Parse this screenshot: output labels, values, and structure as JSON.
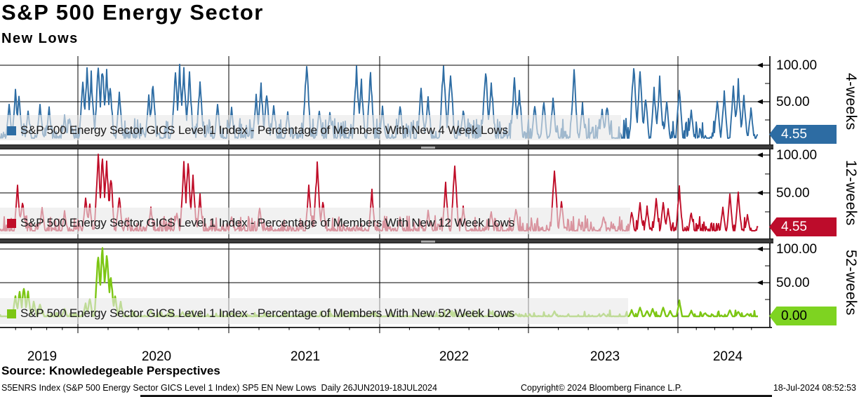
{
  "header": {
    "title": "S&P 500 Energy Sector",
    "subtitle": "New Lows"
  },
  "footer": {
    "source": "Source: Knowledegeable Perspectives",
    "descriptor": "S5ENRS Index (S&P 500 Energy Sector GICS Level 1 Index) SP5 EN New Lows  Daily 26JUN2019-18JUL2024",
    "copyright": "Copyright© 2024 Bloomberg Finance L.P.",
    "timestamp": "18-Jul-2024 08:52:53"
  },
  "chart_data": {
    "type": "line",
    "title": "S&P 500 Energy Sector - New Lows",
    "x_axis": {
      "years": [
        "2019",
        "2020",
        "2021",
        "2022",
        "2023",
        "2024"
      ],
      "range": "26JUN2019-18JUL2024",
      "grid": true
    },
    "y_axis": {
      "tick_labels": [
        "100.00",
        "50.00"
      ],
      "ylim": [
        0,
        100
      ],
      "minor_ticks": [
        25,
        75
      ]
    },
    "panels": [
      {
        "id": "4-weeks",
        "axis_label": "4-weeks",
        "legend": "S&P 500 Energy Sector GICS Level 1 Index - Percentage of Members With New 4 Week Lows",
        "color": "#2e6da4",
        "last_value": 4.55,
        "tag": {
          "label": "4.55",
          "bg": "#2d6ca3",
          "fg": "#ffffff"
        },
        "seed": 42,
        "noise": {
          "density": 0.9,
          "pow": 3.2,
          "scale": 27
        },
        "spikes": [
          [
            13,
            45
          ],
          [
            22,
            62
          ],
          [
            27,
            58
          ],
          [
            40,
            35
          ],
          [
            57,
            48
          ],
          [
            70,
            40
          ],
          [
            92,
            30
          ],
          [
            99,
            28
          ],
          [
            118,
            78
          ],
          [
            124,
            90
          ],
          [
            130,
            85
          ],
          [
            140,
            95
          ],
          [
            146,
            97
          ],
          [
            152,
            92
          ],
          [
            157,
            75
          ],
          [
            170,
            60
          ],
          [
            212,
            55
          ],
          [
            218,
            75
          ],
          [
            250,
            88
          ],
          [
            256,
            92
          ],
          [
            262,
            90
          ],
          [
            270,
            85
          ],
          [
            285,
            75
          ],
          [
            310,
            45
          ],
          [
            330,
            40
          ],
          [
            365,
            55
          ],
          [
            372,
            70
          ],
          [
            380,
            62
          ],
          [
            390,
            48
          ],
          [
            410,
            35
          ],
          [
            437,
            104
          ],
          [
            455,
            40
          ],
          [
            470,
            35
          ],
          [
            508,
            95
          ],
          [
            515,
            75
          ],
          [
            528,
            88
          ],
          [
            545,
            40
          ],
          [
            570,
            45
          ],
          [
            600,
            68
          ],
          [
            610,
            55
          ],
          [
            632,
            102
          ],
          [
            642,
            92
          ],
          [
            660,
            40
          ],
          [
            692,
            97
          ],
          [
            700,
            80
          ],
          [
            733,
            80
          ],
          [
            740,
            65
          ],
          [
            762,
            45
          ],
          [
            775,
            50
          ],
          [
            788,
            55
          ],
          [
            818,
            90
          ],
          [
            830,
            45
          ],
          [
            858,
            42
          ],
          [
            865,
            45
          ],
          [
            903,
            101
          ],
          [
            912,
            88
          ],
          [
            920,
            55
          ],
          [
            932,
            65
          ],
          [
            940,
            78
          ],
          [
            950,
            50
          ],
          [
            968,
            70
          ],
          [
            985,
            35
          ],
          [
            1022,
            55
          ],
          [
            1032,
            62
          ],
          [
            1045,
            70
          ],
          [
            1052,
            75
          ],
          [
            1060,
            55
          ],
          [
            1070,
            40
          ]
        ]
      },
      {
        "id": "12-weeks",
        "axis_label": "12-weeks",
        "legend": "S&P 500 Energy Sector GICS Level 1 Index - Percentage of Members With New 12 Week Lows",
        "color": "#bf0d28",
        "last_value": 4.55,
        "tag": {
          "label": "4.55",
          "bg": "#bd0c2b",
          "fg": "#ffffff"
        },
        "seed": 7,
        "noise": {
          "density": 0.85,
          "pow": 3.6,
          "scale": 20
        },
        "spikes": [
          [
            25,
            55
          ],
          [
            32,
            40
          ],
          [
            60,
            30
          ],
          [
            92,
            25
          ],
          [
            122,
            42
          ],
          [
            128,
            35
          ],
          [
            140,
            96
          ],
          [
            146,
            98
          ],
          [
            152,
            90
          ],
          [
            158,
            72
          ],
          [
            170,
            45
          ],
          [
            215,
            30
          ],
          [
            252,
            25
          ],
          [
            262,
            85
          ],
          [
            268,
            90
          ],
          [
            275,
            70
          ],
          [
            285,
            45
          ],
          [
            330,
            20
          ],
          [
            370,
            30
          ],
          [
            440,
            55
          ],
          [
            452,
            85
          ],
          [
            460,
            40
          ],
          [
            530,
            50
          ],
          [
            570,
            20
          ],
          [
            610,
            25
          ],
          [
            635,
            62
          ],
          [
            648,
            88
          ],
          [
            660,
            30
          ],
          [
            700,
            25
          ],
          [
            735,
            30
          ],
          [
            790,
            85
          ],
          [
            800,
            40
          ],
          [
            860,
            20
          ],
          [
            900,
            25
          ],
          [
            912,
            35
          ],
          [
            922,
            30
          ],
          [
            935,
            42
          ],
          [
            945,
            38
          ],
          [
            952,
            30
          ],
          [
            968,
            55
          ],
          [
            985,
            25
          ],
          [
            1030,
            30
          ],
          [
            1040,
            45
          ],
          [
            1052,
            48
          ],
          [
            1065,
            20
          ]
        ]
      },
      {
        "id": "52-weeks",
        "axis_label": "52-weeks",
        "legend": "S&P 500 Energy Sector GICS Level 1 Index - Percentage of Members With New 52 Week Lows",
        "color": "#7cc613",
        "last_value": 0.0,
        "tag": {
          "label": "0.00",
          "bg": "#7ed321",
          "fg": "#000000"
        },
        "seed": 99,
        "noise": {
          "density": 0.55,
          "pow": 5,
          "scale": 9
        },
        "spikes": [
          [
            22,
            30
          ],
          [
            28,
            40
          ],
          [
            34,
            44
          ],
          [
            40,
            35
          ],
          [
            48,
            22
          ],
          [
            57,
            18
          ],
          [
            92,
            12
          ],
          [
            122,
            18
          ],
          [
            128,
            26
          ],
          [
            140,
            90
          ],
          [
            146,
            101
          ],
          [
            152,
            96
          ],
          [
            158,
            62
          ],
          [
            164,
            30
          ],
          [
            172,
            20
          ],
          [
            215,
            8
          ],
          [
            260,
            6
          ],
          [
            330,
            5
          ],
          [
            440,
            7
          ],
          [
            530,
            4
          ],
          [
            610,
            4
          ],
          [
            640,
            9
          ],
          [
            665,
            6
          ],
          [
            700,
            5
          ],
          [
            735,
            4
          ],
          [
            790,
            7
          ],
          [
            860,
            4
          ],
          [
            900,
            9
          ],
          [
            912,
            14
          ],
          [
            922,
            8
          ],
          [
            930,
            11
          ],
          [
            945,
            13
          ],
          [
            955,
            8
          ],
          [
            968,
            23
          ],
          [
            985,
            8
          ],
          [
            1005,
            5
          ],
          [
            1040,
            9
          ],
          [
            1052,
            7
          ],
          [
            1065,
            4
          ]
        ]
      }
    ]
  }
}
